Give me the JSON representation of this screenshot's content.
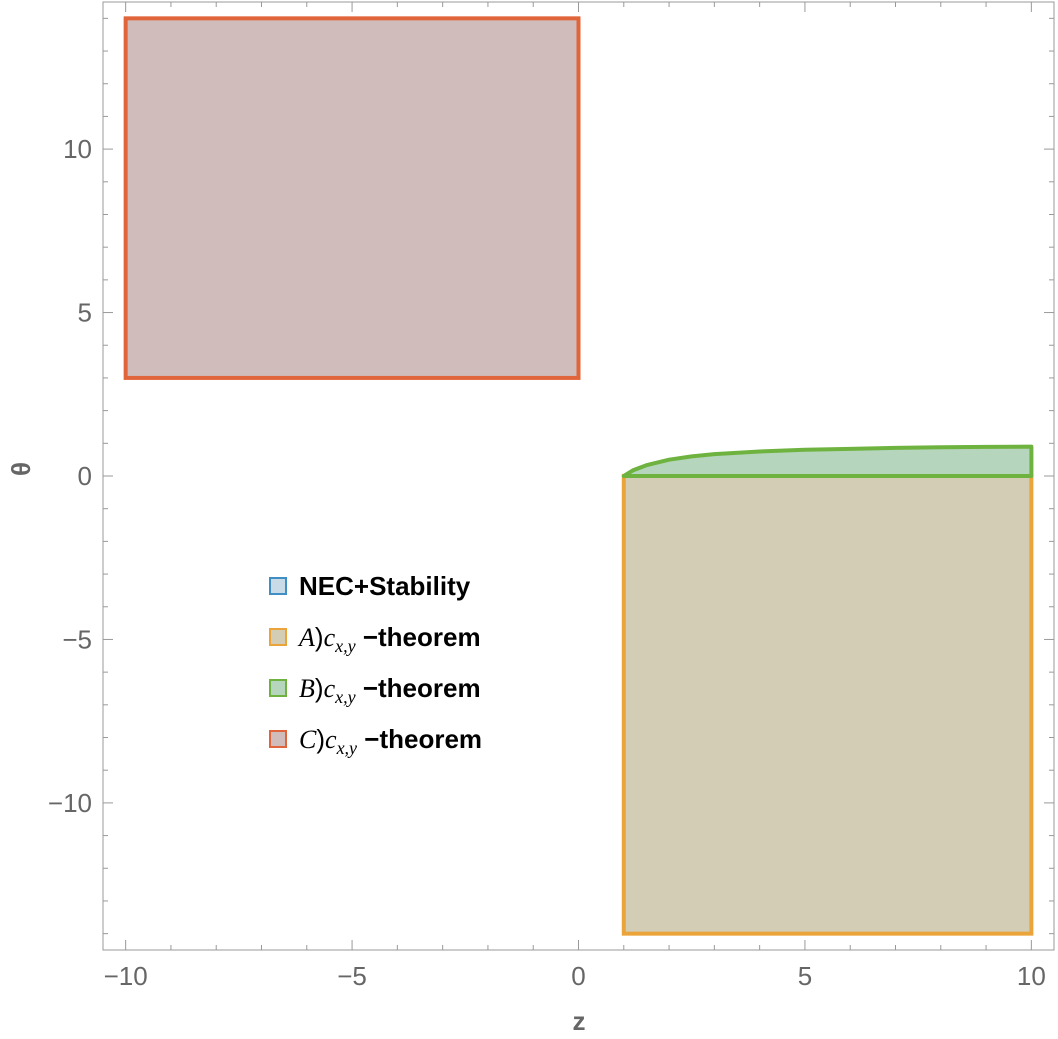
{
  "chart_data": {
    "type": "region",
    "title": "",
    "xlabel": "z",
    "ylabel": "θ",
    "xlim": [
      -10.5,
      10.5
    ],
    "ylim": [
      -14.5,
      14.5
    ],
    "x_ticks": [
      {
        "value": -10,
        "label": "−10"
      },
      {
        "value": -5,
        "label": "−5"
      },
      {
        "value": 0,
        "label": "0"
      },
      {
        "value": 5,
        "label": "5"
      },
      {
        "value": 10,
        "label": "10"
      }
    ],
    "y_ticks": [
      {
        "value": -10,
        "label": "−10"
      },
      {
        "value": -5,
        "label": "−5"
      },
      {
        "value": 0,
        "label": "0"
      },
      {
        "value": 5,
        "label": "5"
      },
      {
        "value": 10,
        "label": "10"
      }
    ],
    "grid": false,
    "legend_position": "center-left",
    "series": [
      {
        "name": "NEC+Stability",
        "legend_prefix": "",
        "legend_sub": "",
        "legend_suffix": "NEC+Stability",
        "stroke": "#3f8fc6",
        "fill": "#c9dbe7",
        "region": null
      },
      {
        "name": "A)c_{x,y} −theorem",
        "legend_prefix": "A)c",
        "legend_sub": "x,y",
        "legend_suffix": " −theorem",
        "stroke": "#eba43a",
        "fill": "#d3cdb6",
        "region": {
          "shape": "rectangle",
          "x": [
            1,
            10
          ],
          "y": [
            -14,
            0
          ]
        }
      },
      {
        "name": "B)c_{x,y} −theorem",
        "legend_prefix": "B)c",
        "legend_sub": "x,y",
        "legend_suffix": " −theorem",
        "stroke": "#6eb33f",
        "fill": "#b5d5bd",
        "region": {
          "shape": "curve",
          "x": [
            1,
            1.2,
            1.5,
            2,
            2.5,
            3,
            4,
            5,
            6,
            7,
            8,
            9,
            10
          ],
          "y_lower": [
            0,
            0,
            0,
            0,
            0,
            0,
            0,
            0,
            0,
            0,
            0,
            0,
            0
          ],
          "y_upper": [
            0,
            0.17,
            0.33,
            0.5,
            0.6,
            0.67,
            0.75,
            0.8,
            0.83,
            0.86,
            0.88,
            0.89,
            0.9
          ]
        }
      },
      {
        "name": "C)c_{x,y} −theorem",
        "legend_prefix": "C)c",
        "legend_sub": "x,y",
        "legend_suffix": " −theorem",
        "stroke": "#e1653a",
        "fill": "#d1bcbc",
        "region": {
          "shape": "rectangle",
          "x": [
            -10,
            0
          ],
          "y": [
            3,
            14
          ]
        }
      }
    ]
  }
}
